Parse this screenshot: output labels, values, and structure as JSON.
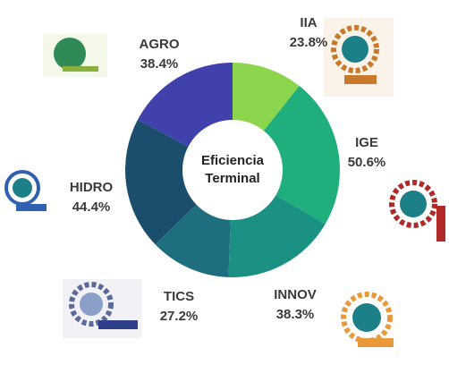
{
  "chart_data": {
    "type": "donut",
    "center_text": [
      "Eficiencia",
      "Terminal"
    ],
    "categories": [
      "IIA",
      "IGE",
      "INNOV",
      "TICS",
      "HIDRO",
      "AGRO"
    ],
    "values": [
      23.8,
      50.6,
      38.3,
      27.2,
      44.4,
      38.4
    ],
    "value_labels": [
      "23.8%",
      "50.6%",
      "38.3%",
      "27.2%",
      "44.4%",
      "38.4%"
    ],
    "colors": [
      "#8cd64e",
      "#1fae7c",
      "#1b9184",
      "#1d6f80",
      "#1a4e6c",
      "#4141ad"
    ]
  }
}
